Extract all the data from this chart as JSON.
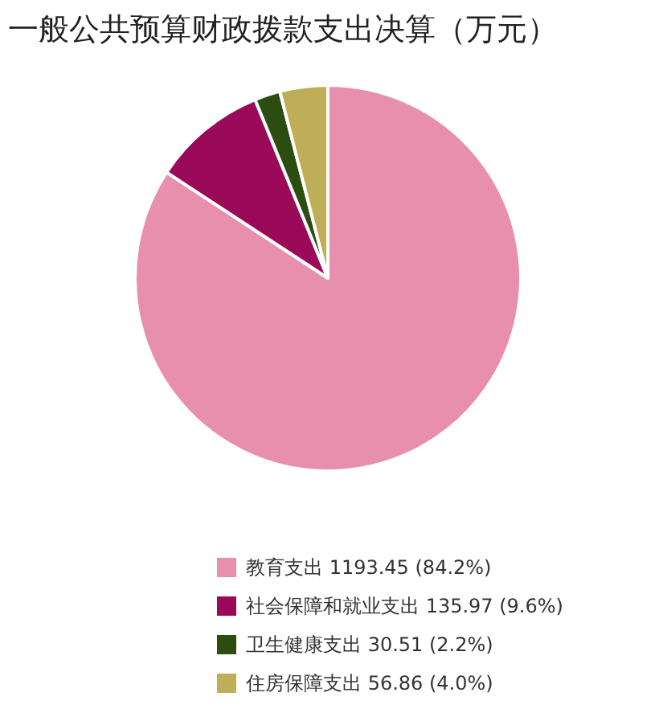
{
  "chart_data": {
    "type": "pie",
    "title": "一般公共预算财政拨款支出决算（万元）",
    "categories": [
      "教育支出",
      "社会保障和就业支出",
      "卫生健康支出",
      "住房保障支出"
    ],
    "values": [
      1193.45,
      135.97,
      30.51,
      56.86
    ],
    "colors": [
      "#e98fae",
      "#9a0a58",
      "#2b4e10",
      "#bfae58"
    ],
    "value_labels": [
      "1193.45 (84.2%)",
      "135.97 (9.6%)",
      "30.51 (2.2%)",
      "56.86 (4.0%)"
    ],
    "legend": "bottom"
  }
}
